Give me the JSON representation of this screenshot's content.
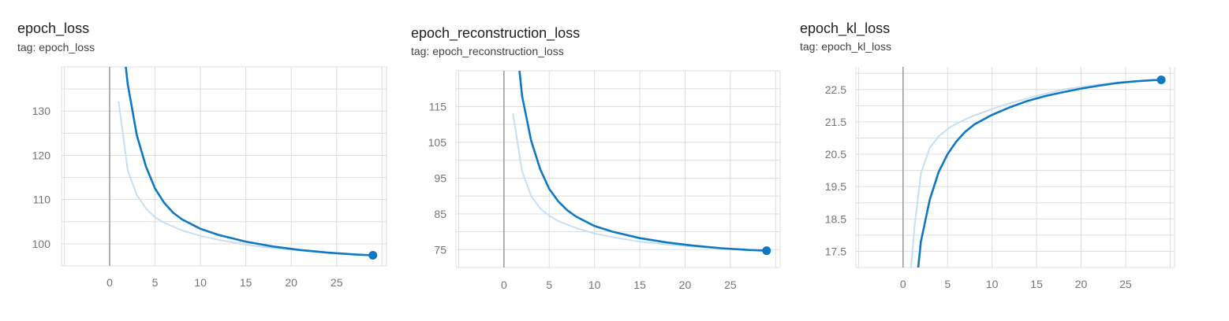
{
  "colors": {
    "smoothed": "#0f78c2",
    "raw": "#c6dff3",
    "grid": "#dddddd",
    "zero_line": "#9e9e9e",
    "tick_text": "#757575"
  },
  "chart_data": [
    {
      "type": "line",
      "title": "epoch_loss",
      "subtitle": "tag: epoch_loss",
      "xlabel": "",
      "ylabel": "",
      "xlim": [
        -5.3,
        30.5
      ],
      "ylim": [
        95,
        140
      ],
      "x_ticks": [
        0,
        5,
        10,
        15,
        20,
        25
      ],
      "y_ticks": [
        100,
        110,
        120,
        130
      ],
      "grid": true,
      "series": [
        {
          "role": "raw",
          "x": [
            1,
            2,
            3,
            4,
            5,
            6,
            8,
            10,
            12,
            15,
            18,
            21,
            24,
            27,
            29
          ],
          "y": [
            132,
            116.5,
            111,
            108,
            106,
            104.8,
            103,
            101.8,
            100.9,
            99.8,
            99,
            98.5,
            98,
            97.6,
            97.4
          ]
        },
        {
          "role": "smoothed",
          "x": [
            1.5,
            2,
            3,
            4,
            5,
            6,
            7,
            8,
            10,
            12,
            15,
            18,
            21,
            24,
            27,
            29
          ],
          "y": [
            145,
            136,
            124.5,
            117.5,
            112.5,
            109.3,
            107,
            105.5,
            103.4,
            102,
            100.5,
            99.4,
            98.6,
            98,
            97.6,
            97.4
          ]
        }
      ]
    },
    {
      "type": "line",
      "title": "epoch_reconstruction_loss",
      "subtitle": "tag: epoch_reconstruction_loss",
      "xlabel": "",
      "ylabel": "",
      "xlim": [
        -5.3,
        30.5
      ],
      "ylim": [
        70,
        125
      ],
      "x_ticks": [
        0,
        5,
        10,
        15,
        20,
        25
      ],
      "y_ticks": [
        75,
        85,
        95,
        105,
        115
      ],
      "grid": true,
      "series": [
        {
          "role": "raw",
          "x": [
            1,
            2,
            3,
            4,
            5,
            6,
            8,
            10,
            12,
            15,
            18,
            21,
            24,
            27,
            29
          ],
          "y": [
            113,
            97,
            90,
            86.5,
            84.5,
            83,
            81,
            79.5,
            78.5,
            77.2,
            76.4,
            75.8,
            75.3,
            74.9,
            74.7
          ]
        },
        {
          "role": "smoothed",
          "x": [
            1.6,
            2,
            3,
            4,
            5,
            6,
            7,
            8,
            10,
            12,
            15,
            18,
            21,
            24,
            27,
            29
          ],
          "y": [
            128,
            118,
            105.5,
            97.5,
            92,
            88.5,
            86,
            84.2,
            81.6,
            80,
            78.2,
            77,
            76.1,
            75.4,
            74.9,
            74.7
          ]
        }
      ]
    },
    {
      "type": "line",
      "title": "epoch_kl_loss",
      "subtitle": "tag: epoch_kl_loss",
      "xlabel": "",
      "ylabel": "",
      "xlim": [
        -5.3,
        30.5
      ],
      "ylim": [
        17.0,
        23.2
      ],
      "x_ticks": [
        0,
        5,
        10,
        15,
        20,
        25
      ],
      "y_ticks": [
        17.5,
        18.5,
        19.5,
        20.5,
        21.5,
        22.5
      ],
      "grid": true,
      "series": [
        {
          "role": "raw",
          "x": [
            0.9,
            1.3,
            2,
            3,
            4,
            5,
            6,
            8,
            10,
            12,
            15,
            18,
            21,
            24,
            27,
            29
          ],
          "y": [
            17.0,
            18.3,
            19.9,
            20.7,
            21.05,
            21.28,
            21.45,
            21.7,
            21.9,
            22.08,
            22.3,
            22.5,
            22.62,
            22.72,
            22.78,
            22.8
          ]
        },
        {
          "role": "smoothed",
          "x": [
            1.7,
            2,
            3,
            4,
            5,
            6,
            7,
            8,
            10,
            12,
            14,
            16,
            18,
            20,
            22,
            24,
            26,
            28,
            29
          ],
          "y": [
            17.0,
            17.8,
            19.1,
            19.95,
            20.5,
            20.9,
            21.2,
            21.42,
            21.72,
            21.95,
            22.15,
            22.3,
            22.42,
            22.53,
            22.62,
            22.7,
            22.75,
            22.79,
            22.8
          ]
        }
      ]
    }
  ]
}
